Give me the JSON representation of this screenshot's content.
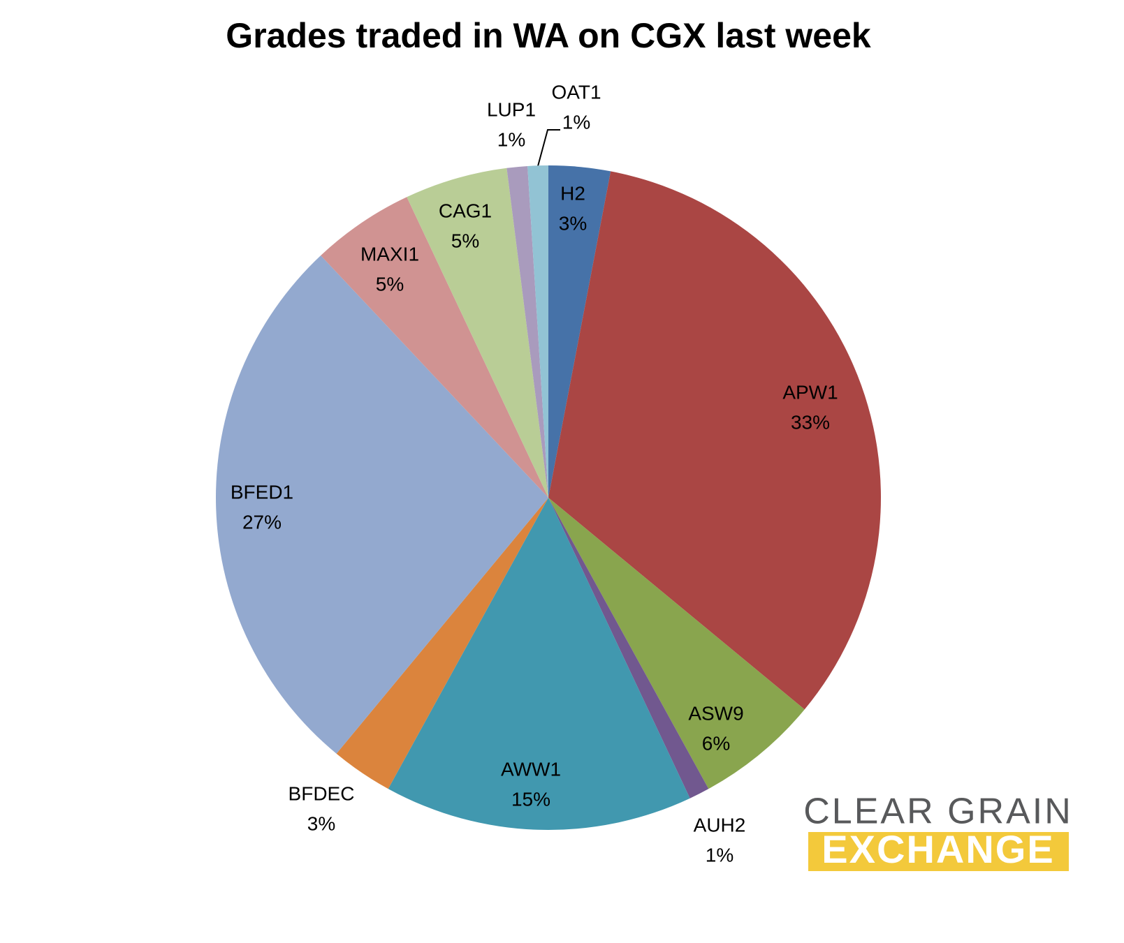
{
  "chart_data": {
    "type": "pie",
    "title": "Grades traded in WA on CGX last week",
    "categories": [
      "H2",
      "APW1",
      "ASW9",
      "AUH2",
      "AWW1",
      "BFDEC",
      "BFED1",
      "MAXI1",
      "CAG1",
      "LUP1",
      "OAT1"
    ],
    "values": [
      3,
      33,
      6,
      1,
      15,
      3,
      27,
      5,
      5,
      1,
      1
    ],
    "value_labels": [
      "3%",
      "33%",
      "6%",
      "1%",
      "15%",
      "3%",
      "27%",
      "5%",
      "5%",
      "1%",
      "1%"
    ],
    "colors": [
      "#4672a8",
      "#aa4644",
      "#89a54e",
      "#71588f",
      "#4198af",
      "#db843d",
      "#93a9cf",
      "#d09392",
      "#b9cd96",
      "#a99bbd",
      "#92c3d4"
    ]
  },
  "logo": {
    "line1": "CLEAR GRAIN",
    "line2": "EXCHANGE"
  }
}
